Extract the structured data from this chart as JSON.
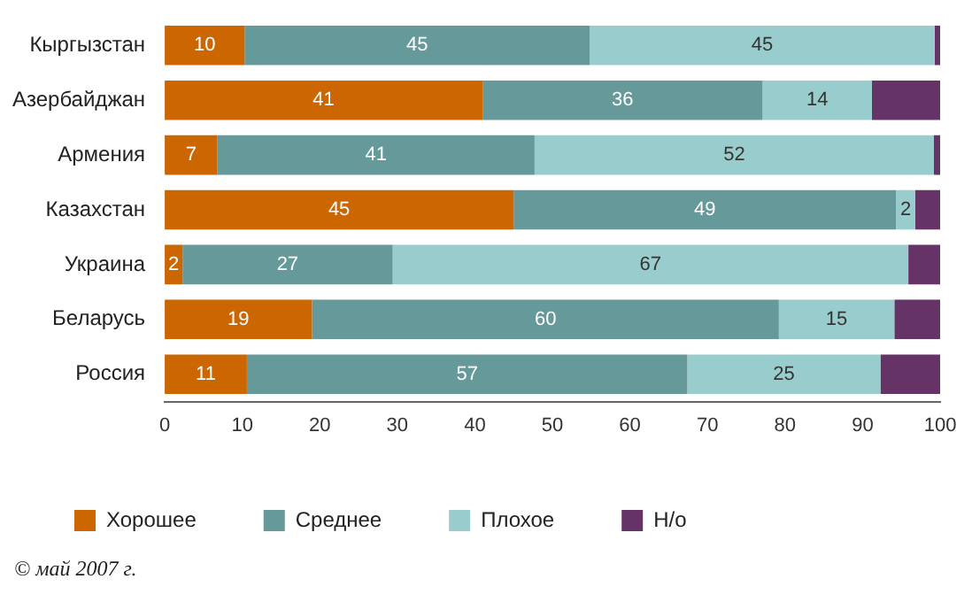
{
  "chart_data": {
    "type": "bar",
    "orientation": "horizontal",
    "stacked": true,
    "categories": [
      "Кыргызстан",
      "Азербайджан",
      "Армения",
      "Казахстан",
      "Украина",
      "Беларусь",
      "Россия"
    ],
    "series": [
      {
        "name": "Хорошее",
        "color": "#cc6600",
        "values": [
          10.3,
          41.0,
          6.8,
          45.0,
          2.3,
          19.0,
          10.6
        ],
        "value_labels": [
          "10",
          "41",
          "7",
          "45",
          "2",
          "19",
          "11"
        ]
      },
      {
        "name": "Среднее",
        "color": "#669999",
        "values": [
          44.5,
          36.1,
          40.9,
          49.3,
          27.1,
          60.2,
          56.8
        ],
        "value_labels": [
          "45",
          "36",
          "41",
          "49",
          "27",
          "60",
          "57"
        ]
      },
      {
        "name": "Плохое",
        "color": "#99cccc",
        "values": [
          44.5,
          14.1,
          51.5,
          2.5,
          66.5,
          14.9,
          24.9
        ],
        "value_labels": [
          "45",
          "14",
          "52",
          "2",
          "67",
          "15",
          "25"
        ]
      },
      {
        "name": "Н/о",
        "color": "#663366",
        "values": [
          0.7,
          8.8,
          0.8,
          3.2,
          4.1,
          5.9,
          7.7
        ],
        "value_labels": [
          null,
          null,
          null,
          null,
          null,
          null,
          null
        ]
      }
    ],
    "xlim": [
      0,
      100
    ],
    "xticks": [
      0,
      10,
      20,
      30,
      40,
      50,
      60,
      70,
      80,
      90,
      100
    ],
    "grid": false,
    "legend": "bottom",
    "annotations": [
      "© май 2007 г."
    ]
  }
}
